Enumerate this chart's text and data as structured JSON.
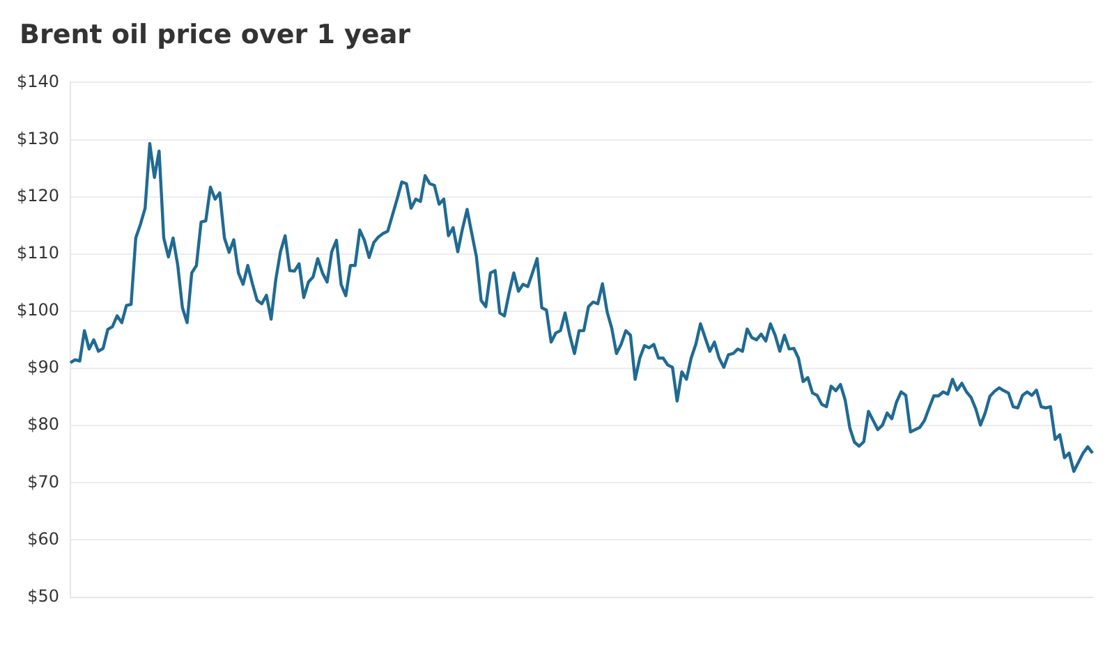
{
  "chart_data": {
    "type": "line",
    "title": "Brent oil price over 1 year",
    "categories": [
      null,
      null,
      null,
      null,
      null,
      null,
      null,
      null,
      null,
      null,
      null,
      null,
      null,
      null,
      null,
      null,
      null,
      null,
      null,
      null,
      null,
      null,
      null,
      null,
      null,
      null,
      null,
      null,
      null,
      null,
      null,
      null,
      null,
      null,
      null,
      null,
      null,
      null,
      null,
      null,
      null,
      null,
      null,
      null,
      null,
      null,
      null,
      null,
      null,
      null,
      null,
      null,
      null,
      null,
      null,
      null,
      null,
      null,
      null,
      null,
      null,
      null,
      null,
      null,
      null,
      null,
      null,
      null,
      null,
      null,
      null,
      null,
      null,
      null,
      null,
      null,
      null,
      null,
      null,
      null,
      null,
      null,
      null,
      null,
      null,
      null,
      null,
      null,
      null,
      null,
      null,
      null,
      null,
      null,
      null,
      null,
      null,
      null,
      null,
      null,
      null,
      null,
      null,
      null,
      null,
      null,
      null,
      null,
      null,
      null,
      null,
      null,
      null,
      null,
      null,
      null,
      null,
      null,
      null,
      null,
      null,
      null,
      null,
      null,
      null,
      null,
      null,
      null,
      null,
      null,
      null,
      null,
      null,
      null,
      null,
      null,
      null,
      null,
      null,
      null,
      null,
      null,
      null,
      null,
      null,
      null,
      null,
      null,
      null,
      null,
      null,
      null,
      null,
      null,
      null,
      null,
      null,
      null,
      null,
      null,
      null,
      null,
      null,
      null,
      null,
      null,
      null,
      null,
      null,
      null,
      null,
      null,
      null,
      null,
      null,
      null,
      null,
      null,
      null,
      null,
      null,
      null,
      null,
      null,
      null,
      null,
      null,
      null,
      null,
      null,
      null,
      null,
      null,
      null,
      null,
      null,
      null,
      null,
      null,
      null,
      null,
      null,
      null,
      null,
      null,
      null,
      null,
      null,
      null,
      null,
      null,
      null,
      null,
      null,
      null,
      null,
      null,
      null,
      null,
      null
    ],
    "series": [
      {
        "color": "#1f6a93",
        "values": [
          91,
          91.5,
          91.3,
          96.6,
          93.4,
          95,
          93,
          93.5,
          96.8,
          97.3,
          99.2,
          98,
          101,
          101.2,
          112.8,
          115.2,
          118,
          129.3,
          123.4,
          128,
          112.8,
          109.5,
          112.8,
          108,
          100.6,
          98,
          106.7,
          108,
          115.6,
          115.8,
          121.7,
          119.6,
          120.7,
          112.8,
          110.3,
          112.5,
          106.7,
          104.7,
          108,
          104.8,
          101.9,
          101.3,
          102.8,
          98.6,
          105.5,
          110.4,
          113.2,
          107.1,
          107,
          108.3,
          102.4,
          105.1,
          106,
          109.2,
          106.7,
          105.1,
          110.4,
          112.4,
          104.7,
          102.7,
          108,
          108,
          114.2,
          112.4,
          109.4,
          112,
          113,
          113.6,
          114,
          116.8,
          119.6,
          122.6,
          122.3,
          118,
          119.6,
          119.2,
          123.7,
          122.3,
          122,
          118.7,
          119.6,
          113.2,
          114.6,
          110.4,
          114.4,
          117.8,
          113.6,
          109.5,
          101.9,
          100.8,
          106.7,
          107.1,
          99.7,
          99.2,
          103.2,
          106.7,
          103.5,
          104.7,
          104.3,
          106.7,
          109.2,
          100.6,
          100.2,
          94.6,
          96.2,
          96.6,
          99.7,
          95.8,
          92.6,
          96.6,
          96.6,
          100.8,
          101.6,
          101.3,
          104.8,
          99.9,
          97,
          92.6,
          94.2,
          96.6,
          95.8,
          88.1,
          91.8,
          94,
          93.6,
          94.2,
          91.8,
          91.8,
          90.6,
          90.2,
          84.3,
          89.4,
          88.1,
          91.8,
          94.2,
          97.8,
          95.4,
          93,
          94.6,
          91.8,
          90.2,
          92.4,
          92.6,
          93.4,
          93,
          96.9,
          95.4,
          95,
          96,
          94.8,
          97.8,
          95.8,
          93,
          95.8,
          93.4,
          93.5,
          91.8,
          87.7,
          88.4,
          85.7,
          85.3,
          83.7,
          83.3,
          86.9,
          86.1,
          87.2,
          84.5,
          79.6,
          77.1,
          76.4,
          77.2,
          82.5,
          80.9,
          79.3,
          80.1,
          82.2,
          81.2,
          84.1,
          85.9,
          85.3,
          78.9,
          79.3,
          79.7,
          80.9,
          83.1,
          85.2,
          85.2,
          85.9,
          85.5,
          88.1,
          86.2,
          87.4,
          85.9,
          84.9,
          82.9,
          80.1,
          82.2,
          85.1,
          86,
          86.6,
          86.1,
          85.7,
          83.3,
          83.1,
          85.3,
          85.9,
          85.3,
          86.2,
          83.3,
          83.1,
          83.3,
          77.6,
          78.4,
          74.4,
          75.2,
          72,
          73.6,
          75.2,
          76.3,
          75.2
        ]
      }
    ],
    "ylim": [
      50,
      140
    ],
    "yticks": [
      {
        "value": 50,
        "label": "$50"
      },
      {
        "value": 60,
        "label": "$60"
      },
      {
        "value": 70,
        "label": "$70"
      },
      {
        "value": 80,
        "label": "$80"
      },
      {
        "value": 90,
        "label": "$90"
      },
      {
        "value": 100,
        "label": "$100"
      },
      {
        "value": 110,
        "label": "$110"
      },
      {
        "value": 120,
        "label": "$120"
      },
      {
        "value": 130,
        "label": "$130"
      },
      {
        "value": 140,
        "label": "$140"
      }
    ],
    "grid": "y",
    "legend": false,
    "marker": "none",
    "line_style": "solid",
    "tick_labels": "y"
  }
}
